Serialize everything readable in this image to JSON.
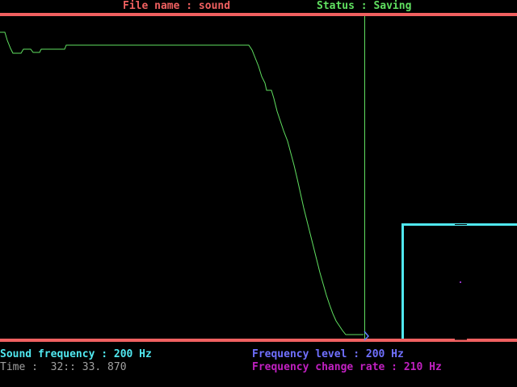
{
  "header": {
    "file_name_label": "File name : sound",
    "status_label": "Status : Saving"
  },
  "footer": {
    "sound_frequency": "Sound frequency : 200 Hz",
    "time": "Time :  32:: 33. 870",
    "frequency_level": "Frequency level : 200 Hz",
    "frequency_change_rate": "Frequency change rate : 210 Hz"
  },
  "colors": {
    "background": "#000000",
    "rule": "#f06060",
    "header_file": "#f06060",
    "header_status": "#60e060",
    "waveform": "#60e060",
    "cursor_line": "#60e060",
    "box": "#50e8f0",
    "sound_frequency": "#50e8f0",
    "time": "#a0a0a0",
    "frequency_level": "#7070ff",
    "frequency_change_rate": "#c020c0"
  },
  "icons": {
    "cursor_marker": "arrow-marker-icon"
  }
}
